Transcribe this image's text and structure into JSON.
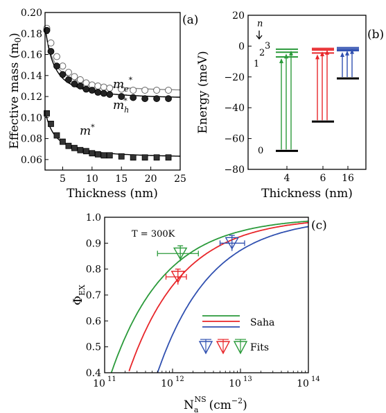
{
  "chart_data": [
    {
      "panel": "(a)",
      "type": "line",
      "xlabel": "Thickness (nm)",
      "ylabel": "Effective mass (m",
      "ylabel_sub": "0",
      "ylabel_end": ")",
      "xlim": [
        2,
        25
      ],
      "ylim": [
        0.05,
        0.2
      ],
      "xticks": [
        5,
        10,
        15,
        20,
        25
      ],
      "yticks": [
        0.06,
        0.08,
        0.1,
        0.12,
        0.14,
        0.16,
        0.18,
        0.2
      ],
      "ytick_labels": [
        "0.06",
        "0.08",
        "0.10",
        "0.12",
        "0.14",
        "0.16",
        "0.18",
        "0.20"
      ],
      "series": [
        {
          "name": "m_e*",
          "label_base": "m",
          "label_sub": "e",
          "label_sup": "*",
          "marker": "open-circle",
          "x": [
            2.3,
            3,
            4,
            5,
            6,
            7,
            8,
            9,
            10,
            11,
            12,
            13,
            15,
            17,
            19,
            21,
            23
          ],
          "y": [
            0.185,
            0.171,
            0.158,
            0.149,
            0.143,
            0.139,
            0.136,
            0.133,
            0.131,
            0.13,
            0.129,
            0.128,
            0.127,
            0.126,
            0.126,
            0.126,
            0.126
          ],
          "fit": {
            "a": 0.124,
            "b": 0.152,
            "p": 1.3
          }
        },
        {
          "name": "m_h*",
          "label_base": "m",
          "label_sub": "h",
          "label_sup": "*",
          "marker": "filled-circle",
          "x": [
            2.3,
            3,
            4,
            5,
            6,
            7,
            8,
            9,
            10,
            11,
            12,
            13,
            15,
            17,
            19,
            21,
            23
          ],
          "y": [
            0.183,
            0.163,
            0.149,
            0.141,
            0.136,
            0.132,
            0.13,
            0.127,
            0.126,
            0.124,
            0.123,
            0.122,
            0.12,
            0.119,
            0.118,
            0.118,
            0.118
          ],
          "fit": {
            "a": 0.117,
            "b": 0.18,
            "p": 1.35
          }
        },
        {
          "name": "m*",
          "label_base": "m",
          "label_sub": "",
          "label_sup": "*",
          "marker": "square",
          "x": [
            2.3,
            3,
            4,
            5,
            6,
            7,
            8,
            9,
            10,
            11,
            12,
            13,
            15,
            17,
            19,
            21,
            23
          ],
          "y": [
            0.104,
            0.094,
            0.083,
            0.077,
            0.073,
            0.071,
            0.069,
            0.068,
            0.066,
            0.065,
            0.064,
            0.064,
            0.063,
            0.062,
            0.062,
            0.062,
            0.062
          ],
          "fit": {
            "a": 0.061,
            "b": 0.105,
            "p": 1.2
          }
        }
      ]
    },
    {
      "panel": "(b)",
      "type": "energy-levels",
      "xlabel": "Thickness (nm)",
      "ylabel": "Energy (meV)",
      "ylim": [
        -80,
        20
      ],
      "yticks": [
        20,
        0,
        -20,
        -40,
        -60,
        -80
      ],
      "ytick_labels": [
        "20",
        "0",
        "−20",
        "−40",
        "−60",
        "−80"
      ],
      "categories": [
        "4",
        "6",
        "16"
      ],
      "n_label": "n",
      "level_labels": [
        "0",
        "1",
        "2",
        "3"
      ],
      "colors": [
        "#2a9a3a",
        "#e8262a",
        "#3050b0"
      ],
      "ground_color": "#000000",
      "ground_levels": [
        -68,
        -49,
        -21
      ],
      "excited_levels": [
        [
          -7,
          -4,
          -2
        ],
        [
          -4.5,
          -2.5,
          -1.5
        ],
        [
          -3,
          -2,
          -1
        ]
      ]
    },
    {
      "panel": "(c)",
      "type": "line",
      "xlabel": "N",
      "xlabel_sub": "a",
      "xlabel_sup": "NS",
      "xlabel_unit": "(cm",
      "xlabel_unit_sup": "−2",
      "xlabel_unit_end": ")",
      "ylabel": "Φ",
      "ylabel_sub": "EX",
      "xscale": "log",
      "xlim": [
        100000000000.0,
        100000000000000.0
      ],
      "ylim": [
        0.4,
        1.0
      ],
      "xtick_base": "10",
      "xtick_exponents": [
        "11",
        "12",
        "13",
        "14"
      ],
      "yticks": [
        0.4,
        0.5,
        0.6,
        0.7,
        0.8,
        0.9,
        1.0
      ],
      "ytick_labels": [
        "0.4",
        "0.5",
        "0.6",
        "0.7",
        "0.8",
        "0.9",
        "1.0"
      ],
      "annotation": "T = 300K",
      "legend": {
        "location": "lower-right",
        "saha_label": "Saha",
        "fits_label": "Fits"
      },
      "series": [
        {
          "color": "#2a9a3a",
          "saha_x0": 240000000000.0,
          "fit_point": {
            "x": 1300000000000.0,
            "y": 0.86,
            "xerr_low": 600000000000.0,
            "xerr_high": 2400000000000.0,
            "yerr": 0.03
          }
        },
        {
          "color": "#e8262a",
          "saha_x0": 430000000000.0,
          "fit_point": {
            "x": 1200000000000.0,
            "y": 0.77,
            "xerr_low": 800000000000.0,
            "xerr_high": 1600000000000.0,
            "yerr": 0.03
          }
        },
        {
          "color": "#3050b0",
          "saha_x0": 1150000000000.0,
          "fit_point": {
            "x": 7500000000000.0,
            "y": 0.9,
            "xerr_low": 5000000000000.0,
            "xerr_high": 11500000000000.0,
            "yerr": 0.03
          }
        }
      ]
    }
  ]
}
